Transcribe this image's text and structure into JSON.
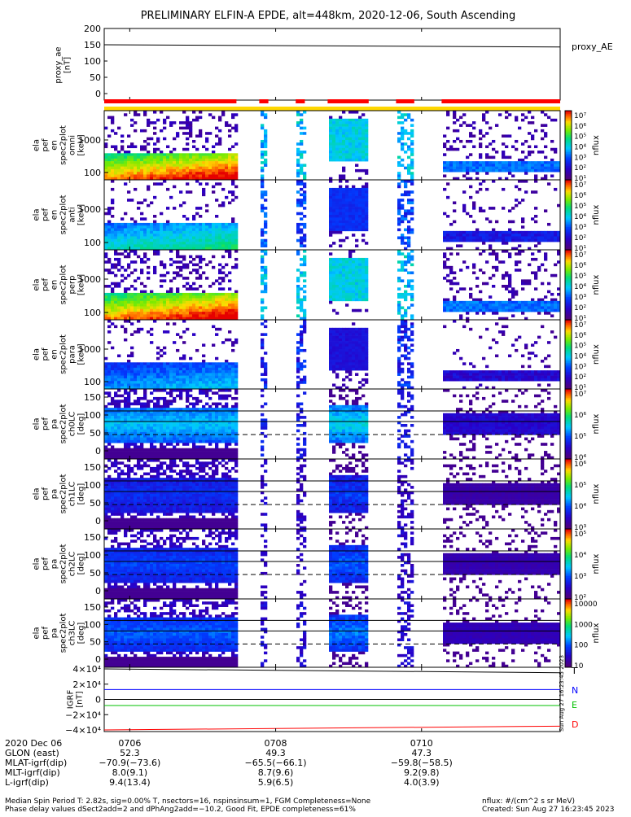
{
  "title": "PRELIMINARY ELFIN-A EPDE, alt=448km, 2020-12-06, South Ascending",
  "panels": {
    "proxy_ae": {
      "ylabel": "proxy_ae\n[nT]",
      "legend": "proxy_AE",
      "yticks": [
        "200",
        "150",
        "100",
        "50",
        "0"
      ]
    },
    "p1": {
      "ylabel": "ela\npef\nen\nspec2plot\nomni\n[keV]",
      "yticks": [
        "1000",
        "100"
      ]
    },
    "p2": {
      "ylabel": "ela\npef\nen\nspec2plot\nanti\n[keV]",
      "yticks": [
        "1000",
        "100"
      ]
    },
    "p3": {
      "ylabel": "ela\npef\nen\nspec2plot\nperp\n[keV]",
      "yticks": [
        "1000",
        "100"
      ]
    },
    "p4": {
      "ylabel": "ela\npef\nen\nspec2plot\npara\n[keV]",
      "yticks": [
        "1000",
        "100"
      ]
    },
    "p5": {
      "ylabel": "ela\npef\npa\nspec2plot\nch0LC\n[deg]",
      "yticks": [
        "150",
        "100",
        "50",
        "0"
      ]
    },
    "p6": {
      "ylabel": "ela\npef\npa\nspec2plot\nch1LC\n[deg]",
      "yticks": [
        "150",
        "100",
        "50",
        "0"
      ]
    },
    "p7": {
      "ylabel": "ela\npef\npa\nspec2plot\nch2LC\n[deg]",
      "yticks": [
        "150",
        "100",
        "50",
        "0"
      ]
    },
    "p8": {
      "ylabel": "ela\npef\npa\nspec2plot\nch3LC\n[deg]",
      "yticks": [
        "150",
        "100",
        "50",
        "0"
      ]
    },
    "igrf": {
      "ylabel": "IGRF\n[nT]",
      "yticks": [
        "4×10⁴",
        "2×10⁴",
        "0",
        "−2×10⁴",
        "−4×10⁴"
      ],
      "legend": [
        "T",
        "N",
        "E",
        "D"
      ]
    }
  },
  "colorbars": [
    {
      "label": "nflux",
      "ticks": [
        "10⁷",
        "10⁶",
        "10⁵",
        "10⁴",
        "10³",
        "10²",
        "10¹"
      ]
    },
    {
      "label": "nflux",
      "ticks": [
        "10⁷",
        "10⁶",
        "10⁵",
        "10⁴",
        "10³",
        "10²",
        "10¹"
      ]
    },
    {
      "label": "nflux",
      "ticks": [
        "10⁷",
        "10⁶",
        "10⁵",
        "10⁴",
        "10³",
        "10²",
        "10¹"
      ]
    },
    {
      "label": "nflux",
      "ticks": [
        "10⁷",
        "10⁶",
        "10⁵",
        "10⁴",
        "10³",
        "10²",
        "10¹"
      ]
    },
    {
      "label": "nflux",
      "ticks": [
        "10⁷",
        "10⁶",
        "10⁵",
        "10⁴"
      ]
    },
    {
      "label": "nflux",
      "ticks": [
        "10⁶",
        "10⁵",
        "10⁴",
        "10³"
      ]
    },
    {
      "label": "nflux",
      "ticks": [
        "10⁵",
        "10⁴",
        "10³",
        "10²"
      ]
    },
    {
      "label": "nflux",
      "ticks": [
        "10000",
        "1000",
        "100",
        "10"
      ]
    }
  ],
  "xaxis": {
    "rows": [
      {
        "label": "2020 Dec 06",
        "values": [
          "0706",
          "0708",
          "0710"
        ]
      },
      {
        "label": "GLON (east)",
        "values": [
          "52.3",
          "49.3",
          "47.3"
        ]
      },
      {
        "label": "MLAT-igrf(dip)",
        "values": [
          "−70.9(−73.6)",
          "−65.5(−66.1)",
          "−59.8(−58.5)"
        ]
      },
      {
        "label": "MLT-igrf(dip)",
        "values": [
          "8.0(9.1)",
          "8.7(9.6)",
          "9.2(9.8)"
        ]
      },
      {
        "label": "L-igrf(dip)",
        "values": [
          "9.4(13.4)",
          "5.9(6.5)",
          "4.0(3.9)"
        ]
      }
    ]
  },
  "footer": {
    "line1": "Median Spin Period T: 2.82s, sig=0.00% T, nsectors=16, nspinsinsum=1, FGM Completeness=None",
    "line2": "Phase delay values dSect2add=2 and dPhAng2add=−10.2, Good Fit, EPDE completeness=61%",
    "units": "nflux: #/(cm^2 s sr MeV)",
    "created": "Created: Sun Aug 27 16:23:45 2023",
    "vertical_stamp": "Sun Aug 27 16:23:45 2023"
  },
  "colors": {
    "red": "#ff0000",
    "yellow": "#ffd700",
    "blue": "#0000ff",
    "green": "#00c000",
    "black": "#000000"
  },
  "chart_data": {
    "type": "heatmap",
    "title": "PRELIMINARY ELFIN-A EPDE, alt=448km, 2020-12-06, South Ascending",
    "x_ticks": [
      "0706",
      "0708",
      "0710"
    ],
    "proxy_ae": {
      "type": "line",
      "ylim": [
        0,
        200
      ],
      "start": 150,
      "end": 143
    },
    "data_segments": [
      [
        0.0,
        0.29
      ],
      [
        0.34,
        0.36
      ],
      [
        0.42,
        0.44
      ],
      [
        0.49,
        0.58
      ],
      [
        0.64,
        0.68
      ],
      [
        0.74,
        1.0
      ]
    ],
    "igrf": {
      "type": "line",
      "ylim": [
        -40000,
        40000
      ],
      "T": [
        40000,
        35000
      ],
      "N": [
        13000,
        13000
      ],
      "E": [
        -8000,
        -8000
      ],
      "D": [
        -40000,
        -35000
      ]
    }
  }
}
